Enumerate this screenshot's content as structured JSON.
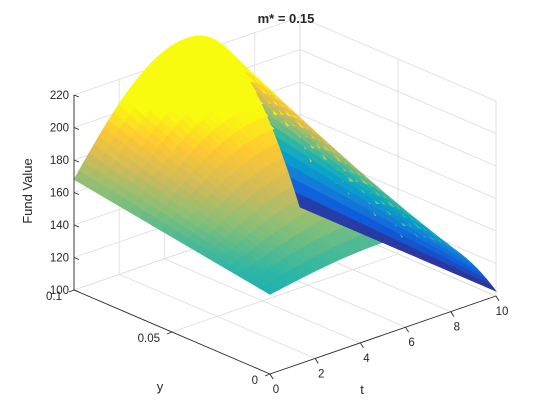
{
  "chart_data": {
    "type": "surface",
    "title": "m* = 0.15",
    "xlabel": "t",
    "ylabel": "y",
    "zlabel": "Fund Value",
    "xlim": [
      0,
      10
    ],
    "ylim": [
      0,
      0.1
    ],
    "zlim": [
      100,
      220
    ],
    "xticks": [
      "0",
      "2",
      "4",
      "6",
      "8",
      "10"
    ],
    "yticks": [
      "0",
      "0.05",
      "0.1"
    ],
    "zticks": [
      "100",
      "120",
      "140",
      "160",
      "180",
      "200",
      "220"
    ],
    "grid": true,
    "colormap": "parula",
    "colors": [
      "#352a87",
      "#0f5cdd",
      "#1481d6",
      "#06a4ca",
      "#2eb7a4",
      "#87bf77",
      "#d1bb59",
      "#fec832",
      "#f9fb0e"
    ],
    "corner_values": [
      {
        "t": 0,
        "y": 0.1,
        "z": 168
      },
      {
        "t": 0,
        "y": 0,
        "z": 149
      },
      {
        "t": 10,
        "y": 0.1,
        "z": 105
      },
      {
        "t": 10,
        "y": 0,
        "z": 103
      }
    ],
    "surface_note": "z rises from about 168 at t=0 to about 204 near t=5 along y=0.1, then drops to about 103 at t=10"
  }
}
